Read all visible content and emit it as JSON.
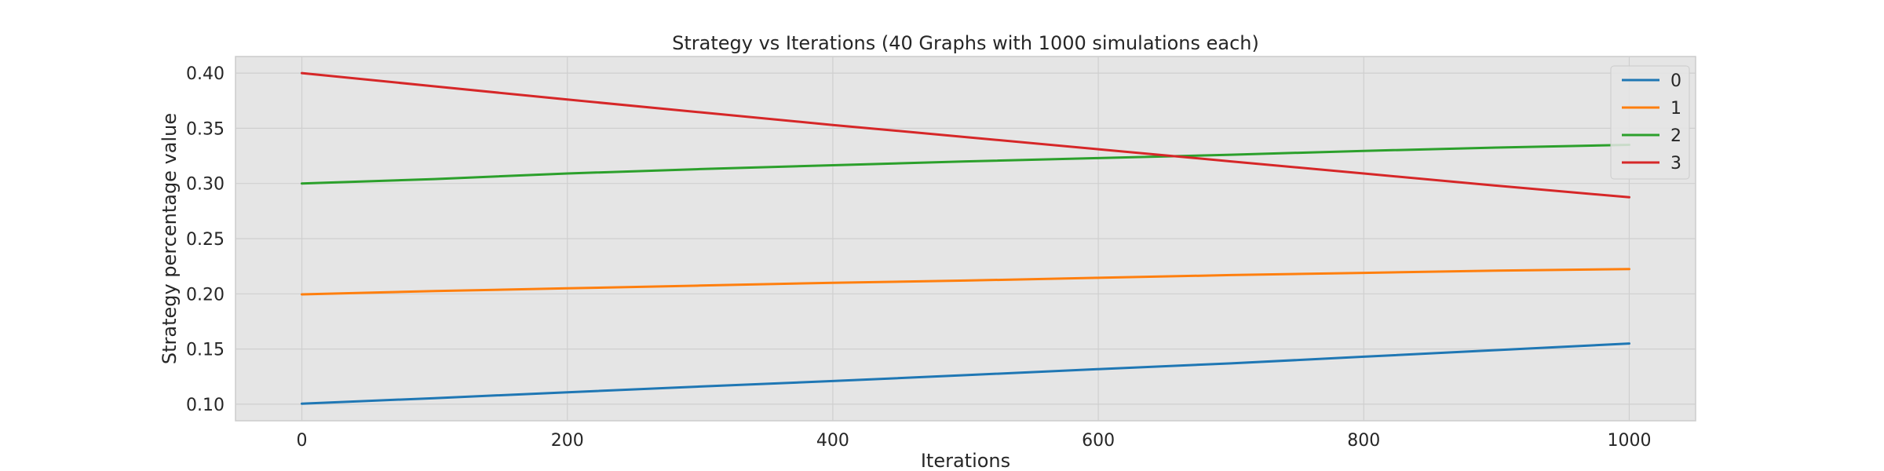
{
  "chart_data": {
    "type": "line",
    "title": "Strategy vs Iterations (40 Graphs with 1000 simulations each)",
    "xlabel": "Iterations",
    "ylabel": "Strategy percentage value",
    "xlim": [
      -50,
      1050
    ],
    "ylim": [
      0.085,
      0.415
    ],
    "xticks": [
      0,
      200,
      400,
      600,
      800,
      1000
    ],
    "yticks": [
      0.1,
      0.15,
      0.2,
      0.25,
      0.3,
      0.35,
      0.4
    ],
    "xtick_labels": [
      "0",
      "200",
      "400",
      "600",
      "800",
      "1000"
    ],
    "ytick_labels": [
      "0.10",
      "0.15",
      "0.20",
      "0.25",
      "0.30",
      "0.35",
      "0.40"
    ],
    "grid": true,
    "legend_position": "top-right",
    "x": [
      0,
      100,
      200,
      300,
      400,
      500,
      600,
      700,
      800,
      900,
      1000
    ],
    "series": [
      {
        "name": "0",
        "color": "#1f77b4",
        "values": [
          0.1005,
          0.1055,
          0.1108,
          0.116,
          0.121,
          0.1263,
          0.1318,
          0.137,
          0.143,
          0.149,
          0.155
        ]
      },
      {
        "name": "1",
        "color": "#ff7f0e",
        "values": [
          0.1995,
          0.2025,
          0.205,
          0.2075,
          0.21,
          0.212,
          0.2145,
          0.217,
          0.219,
          0.221,
          0.2225
        ]
      },
      {
        "name": "2",
        "color": "#2ca02c",
        "values": [
          0.3,
          0.304,
          0.309,
          0.313,
          0.3165,
          0.32,
          0.323,
          0.326,
          0.3295,
          0.3325,
          0.335
        ]
      },
      {
        "name": "3",
        "color": "#d62728",
        "values": [
          0.4,
          0.388,
          0.376,
          0.3645,
          0.353,
          0.342,
          0.331,
          0.32,
          0.309,
          0.298,
          0.2875
        ]
      }
    ]
  }
}
